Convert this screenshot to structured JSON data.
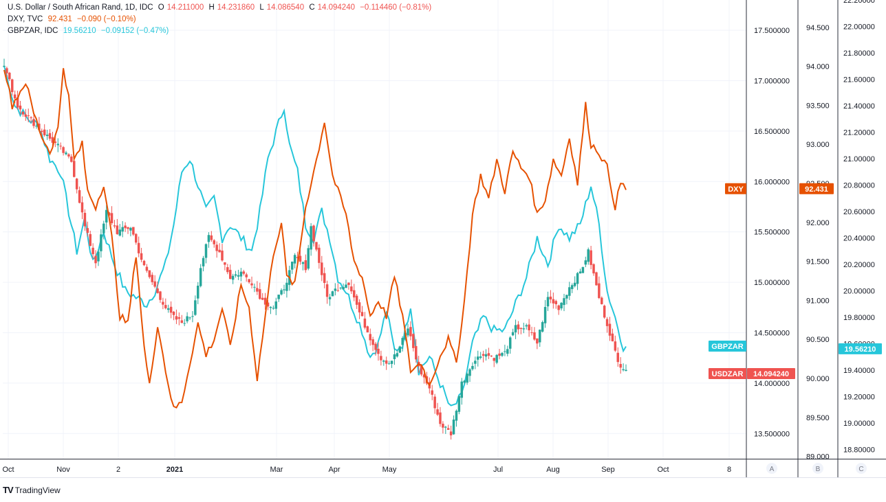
{
  "legend": {
    "main": {
      "name": "U.S. Dollar / South African Rand, 1D, IDC",
      "o_label": "O",
      "o": "14.211000",
      "h_label": "H",
      "h": "14.231860",
      "l_label": "L",
      "l": "14.086540",
      "c_label": "C",
      "c": "14.094240",
      "chg": "−0.114460 (−0.81%)"
    },
    "dxy": {
      "name": "DXY, TVC",
      "value": "92.431",
      "chg": "−0.090 (−0.10%)"
    },
    "gbpzar": {
      "name": "GBPZAR, IDC",
      "value": "19.56210",
      "chg": "−0.09152 (−0.47%)"
    }
  },
  "colors": {
    "up": "#26a69a",
    "down": "#ef5350",
    "dxy": "#e65100",
    "gbpzar": "#26c6da",
    "grid": "#f0f3fa",
    "axis": "#131722"
  },
  "chart_data": {
    "type": "line",
    "x_ticks": [
      "Oct",
      "Nov",
      "2",
      "2021",
      "Mar",
      "Apr",
      "May",
      "Jul",
      "Aug",
      "Sep",
      "Oct",
      "8"
    ],
    "axes": {
      "usdzar": {
        "ylim": [
          13.25,
          17.8
        ],
        "ticks": [
          "13.500000",
          "14.000000",
          "14.500000",
          "15.000000",
          "15.500000",
          "16.000000",
          "16.500000",
          "17.000000",
          "17.500000"
        ]
      },
      "dxy": {
        "ylim": [
          88.97,
          94.85
        ],
        "ticks": [
          "89.000",
          "89.500",
          "90.000",
          "90.500",
          "91.000",
          "91.500",
          "92.000",
          "92.500",
          "93.000",
          "93.500",
          "94.000",
          "94.500"
        ]
      },
      "gbpzar": {
        "ylim": [
          18.73,
          22.2
        ],
        "ticks": [
          "18.80000",
          "19.00000",
          "19.20000",
          "19.40000",
          "19.60000",
          "19.80000",
          "20.00000",
          "20.20000",
          "20.40000",
          "20.60000",
          "20.80000",
          "21.00000",
          "21.20000",
          "21.40000",
          "21.60000",
          "21.80000",
          "22.00000",
          "22.20000"
        ]
      }
    },
    "pane_labels": [
      "A",
      "B",
      "C"
    ],
    "series": [
      {
        "name": "USDZAR",
        "type": "candlestick",
        "axis": "usdzar",
        "last": "14.094240",
        "anchors": [
          [
            0,
            17.15
          ],
          [
            5,
            16.75
          ],
          [
            12,
            16.55
          ],
          [
            20,
            16.35
          ],
          [
            25,
            16.2
          ],
          [
            30,
            15.55
          ],
          [
            34,
            15.2
          ],
          [
            38,
            15.7
          ],
          [
            42,
            15.5
          ],
          [
            47,
            15.55
          ],
          [
            52,
            15.15
          ],
          [
            56,
            14.95
          ],
          [
            60,
            14.75
          ],
          [
            63,
            14.65
          ],
          [
            66,
            14.6
          ],
          [
            70,
            14.68
          ],
          [
            73,
            15.15
          ],
          [
            76,
            15.45
          ],
          [
            80,
            15.3
          ],
          [
            84,
            15.05
          ],
          [
            88,
            15.1
          ],
          [
            92,
            15.0
          ],
          [
            96,
            14.82
          ],
          [
            100,
            14.75
          ],
          [
            104,
            14.95
          ],
          [
            108,
            15.25
          ],
          [
            112,
            15.15
          ],
          [
            114,
            15.55
          ],
          [
            117,
            15.2
          ],
          [
            120,
            14.85
          ],
          [
            124,
            14.95
          ],
          [
            128,
            15.0
          ],
          [
            132,
            14.7
          ],
          [
            136,
            14.45
          ],
          [
            140,
            14.25
          ],
          [
            143,
            14.2
          ],
          [
            146,
            14.3
          ],
          [
            150,
            14.55
          ],
          [
            154,
            14.15
          ],
          [
            158,
            13.95
          ],
          [
            162,
            13.6
          ],
          [
            166,
            13.5
          ],
          [
            170,
            14.0
          ],
          [
            174,
            14.2
          ],
          [
            178,
            14.3
          ],
          [
            182,
            14.25
          ],
          [
            186,
            14.3
          ],
          [
            190,
            14.55
          ],
          [
            194,
            14.55
          ],
          [
            198,
            14.4
          ],
          [
            202,
            14.85
          ],
          [
            206,
            14.75
          ],
          [
            210,
            14.95
          ],
          [
            214,
            15.1
          ],
          [
            217,
            15.3
          ],
          [
            221,
            14.85
          ],
          [
            225,
            14.5
          ],
          [
            228,
            14.2
          ],
          [
            231,
            14.15
          ]
        ]
      },
      {
        "name": "DXY",
        "type": "line",
        "axis": "dxy",
        "last": "92.431",
        "anchors": [
          [
            0,
            94.0
          ],
          [
            3,
            93.5
          ],
          [
            8,
            93.8
          ],
          [
            11,
            93.4
          ],
          [
            14,
            93.1
          ],
          [
            17,
            92.9
          ],
          [
            20,
            93.2
          ],
          [
            22,
            94.0
          ],
          [
            24,
            93.6
          ],
          [
            26,
            92.8
          ],
          [
            29,
            93.0
          ],
          [
            31,
            92.4
          ],
          [
            34,
            92.2
          ],
          [
            37,
            92.5
          ],
          [
            40,
            91.8
          ],
          [
            43,
            90.8
          ],
          [
            46,
            90.7
          ],
          [
            49,
            91.6
          ],
          [
            52,
            90.4
          ],
          [
            54,
            89.9
          ],
          [
            57,
            90.7
          ],
          [
            60,
            90.1
          ],
          [
            63,
            89.6
          ],
          [
            66,
            89.7
          ],
          [
            69,
            90.2
          ],
          [
            72,
            90.7
          ],
          [
            75,
            90.3
          ],
          [
            78,
            90.5
          ],
          [
            81,
            90.9
          ],
          [
            84,
            90.4
          ],
          [
            88,
            91.2
          ],
          [
            91,
            90.9
          ],
          [
            94,
            90.0
          ],
          [
            97,
            90.8
          ],
          [
            100,
            91.6
          ],
          [
            103,
            92.0
          ],
          [
            105,
            91.3
          ],
          [
            108,
            91.2
          ],
          [
            112,
            92.2
          ],
          [
            116,
            92.8
          ],
          [
            119,
            93.3
          ],
          [
            122,
            92.6
          ],
          [
            125,
            92.3
          ],
          [
            127,
            92.1
          ],
          [
            130,
            91.5
          ],
          [
            133,
            91.3
          ],
          [
            136,
            90.8
          ],
          [
            139,
            91.0
          ],
          [
            142,
            90.8
          ],
          [
            145,
            91.3
          ],
          [
            148,
            90.8
          ],
          [
            151,
            90.1
          ],
          [
            155,
            90.2
          ],
          [
            158,
            89.9
          ],
          [
            162,
            90.3
          ],
          [
            165,
            90.5
          ],
          [
            168,
            90.2
          ],
          [
            171,
            91.0
          ],
          [
            174,
            92.1
          ],
          [
            177,
            92.6
          ],
          [
            180,
            92.3
          ],
          [
            183,
            92.8
          ],
          [
            186,
            92.4
          ],
          [
            189,
            92.9
          ],
          [
            192,
            92.7
          ],
          [
            195,
            92.6
          ],
          [
            198,
            92.1
          ],
          [
            201,
            92.3
          ],
          [
            204,
            92.8
          ],
          [
            207,
            92.6
          ],
          [
            210,
            93.1
          ],
          [
            213,
            92.5
          ],
          [
            216,
            93.5
          ],
          [
            218,
            93.0
          ],
          [
            221,
            92.9
          ],
          [
            224,
            92.7
          ],
          [
            227,
            92.2
          ],
          [
            229,
            92.5
          ],
          [
            231,
            92.43
          ]
        ]
      },
      {
        "name": "GBPZAR",
        "type": "line",
        "axis": "gbpzar",
        "last": "19.56210",
        "anchors": [
          [
            0,
            21.7
          ],
          [
            4,
            21.4
          ],
          [
            9,
            21.3
          ],
          [
            13,
            21.25
          ],
          [
            17,
            21.0
          ],
          [
            21,
            20.9
          ],
          [
            24,
            20.6
          ],
          [
            27,
            20.3
          ],
          [
            30,
            20.55
          ],
          [
            33,
            20.2
          ],
          [
            37,
            20.45
          ],
          [
            41,
            20.2
          ],
          [
            45,
            20.0
          ],
          [
            49,
            19.95
          ],
          [
            53,
            19.9
          ],
          [
            56,
            20.0
          ],
          [
            60,
            20.2
          ],
          [
            63,
            20.5
          ],
          [
            66,
            20.9
          ],
          [
            69,
            21.0
          ],
          [
            72,
            20.8
          ],
          [
            75,
            20.6
          ],
          [
            78,
            20.7
          ],
          [
            81,
            20.4
          ],
          [
            84,
            20.5
          ],
          [
            88,
            20.4
          ],
          [
            92,
            20.3
          ],
          [
            95,
            20.6
          ],
          [
            98,
            21.0
          ],
          [
            101,
            21.2
          ],
          [
            104,
            21.4
          ],
          [
            106,
            21.1
          ],
          [
            109,
            20.9
          ],
          [
            112,
            20.5
          ],
          [
            115,
            20.4
          ],
          [
            118,
            20.6
          ],
          [
            121,
            20.4
          ],
          [
            124,
            20.1
          ],
          [
            127,
            20.0
          ],
          [
            130,
            19.85
          ],
          [
            133,
            19.7
          ],
          [
            136,
            19.5
          ],
          [
            139,
            19.6
          ],
          [
            142,
            19.85
          ],
          [
            145,
            19.55
          ],
          [
            148,
            19.6
          ],
          [
            151,
            19.9
          ],
          [
            154,
            19.4
          ],
          [
            158,
            19.5
          ],
          [
            162,
            19.3
          ],
          [
            166,
            19.1
          ],
          [
            170,
            19.2
          ],
          [
            174,
            19.6
          ],
          [
            178,
            19.8
          ],
          [
            182,
            19.7
          ],
          [
            186,
            19.7
          ],
          [
            190,
            19.9
          ],
          [
            194,
            20.1
          ],
          [
            198,
            20.4
          ],
          [
            202,
            20.2
          ],
          [
            206,
            20.5
          ],
          [
            210,
            20.4
          ],
          [
            214,
            20.5
          ],
          [
            218,
            20.8
          ],
          [
            221,
            20.5
          ],
          [
            224,
            20.0
          ],
          [
            227,
            19.8
          ],
          [
            230,
            19.58
          ],
          [
            231,
            19.56
          ]
        ]
      }
    ]
  },
  "tags": {
    "dxy_label": "DXY",
    "dxy_value": "92.431",
    "gbpzar_label": "GBPZAR",
    "gbpzar_value": "19.56210",
    "usdzar_label": "USDZAR",
    "usdzar_value": "14.094240"
  },
  "footer": {
    "brand": "TradingView"
  }
}
